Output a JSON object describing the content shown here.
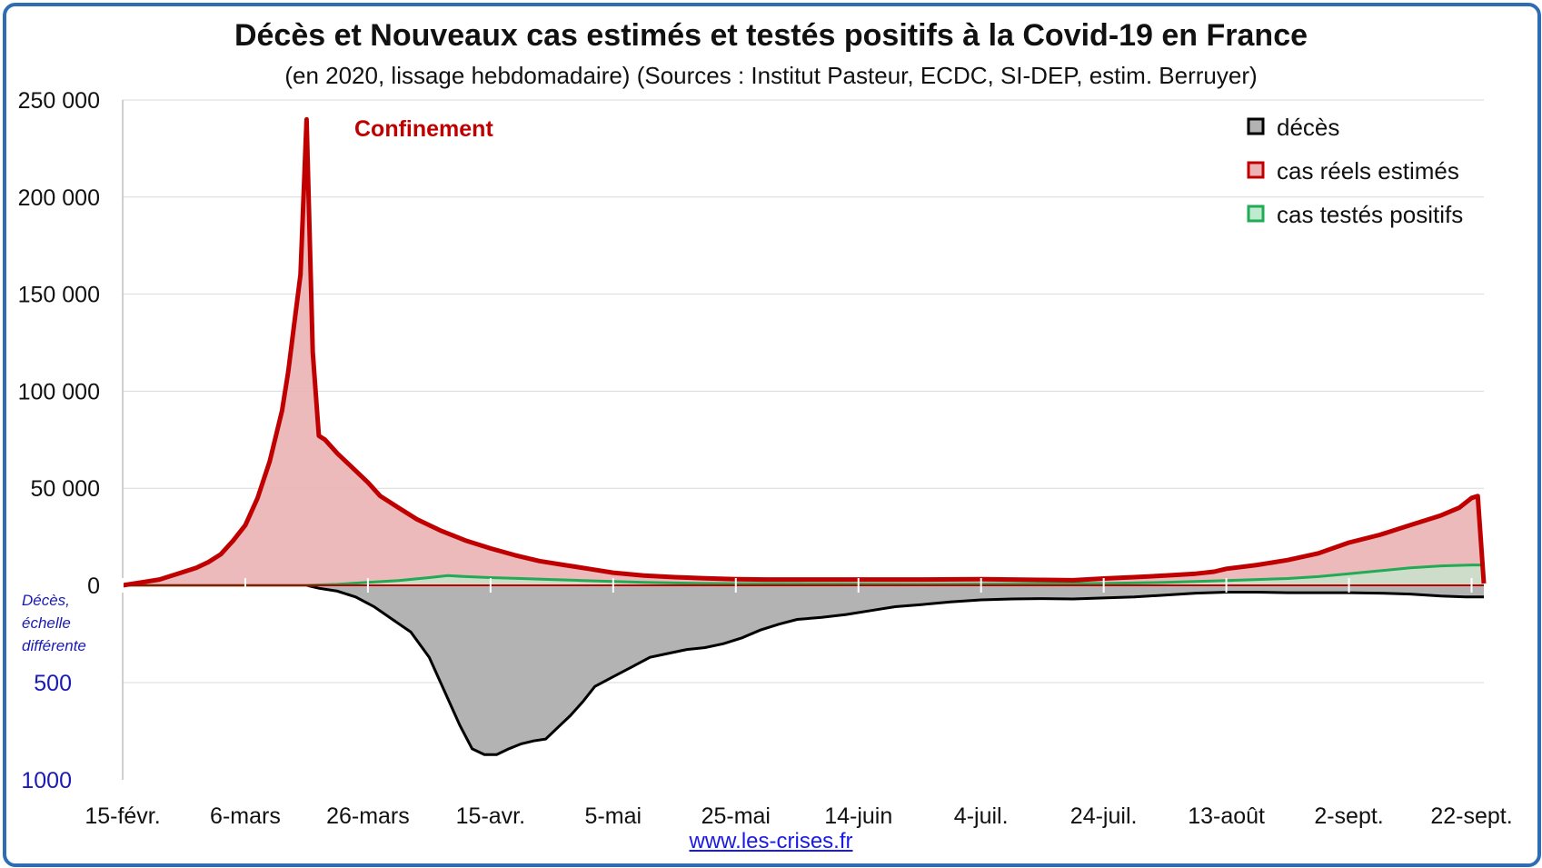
{
  "title": "Décès et Nouveaux cas estimés et testés positifs à la Covid-19 en France",
  "subtitle": "(en 2020, lissage hebdomadaire) (Sources : Institut Pasteur, ECDC, SI-DEP, estim. Berruyer)",
  "source_link": "www.les-crises.fr",
  "colors": {
    "frame": "#2e6db4",
    "cases": "#c00000",
    "cases_fill": "#ebb3b5",
    "tested": "#22aa55",
    "tested_fill": "#bfeccf",
    "deaths": "#000000",
    "deaths_fill": "#b3b3b3",
    "blue_text": "#1a1ab4"
  },
  "chart_data": {
    "type": "area",
    "annotation": "Confinement",
    "deaths_note": [
      "Décès,",
      "échelle",
      "différente"
    ],
    "ylim": [
      0,
      250000
    ],
    "y_ticks": [
      {
        "value": 250000,
        "label": "250 000"
      },
      {
        "value": 200000,
        "label": "200 000"
      },
      {
        "value": 150000,
        "label": "150 000"
      },
      {
        "value": 100000,
        "label": "100 000"
      },
      {
        "value": 50000,
        "label": "50 000"
      },
      {
        "value": 0,
        "label": "0"
      }
    ],
    "deaths_ticks": [
      {
        "value": 500,
        "label": "500"
      },
      {
        "value": 1000,
        "label": "1000"
      }
    ],
    "x_ticks": [
      {
        "day": 0,
        "label": "15-févr."
      },
      {
        "day": 20,
        "label": "6-mars"
      },
      {
        "day": 40,
        "label": "26-mars"
      },
      {
        "day": 60,
        "label": "15-avr."
      },
      {
        "day": 80,
        "label": "5-mai"
      },
      {
        "day": 100,
        "label": "25-mai"
      },
      {
        "day": 120,
        "label": "14-juin"
      },
      {
        "day": 140,
        "label": "4-juil."
      },
      {
        "day": 160,
        "label": "24-juil."
      },
      {
        "day": 180,
        "label": "13-août"
      },
      {
        "day": 200,
        "label": "2-sept."
      },
      {
        "day": 220,
        "label": "22-sept."
      }
    ],
    "legend_position": "top-right",
    "series": [
      {
        "name": "décès",
        "key": "deaths",
        "points": [
          [
            0,
            0
          ],
          [
            30,
            0
          ],
          [
            32,
            15
          ],
          [
            35,
            30
          ],
          [
            38,
            60
          ],
          [
            41,
            110
          ],
          [
            44,
            175
          ],
          [
            47,
            240
          ],
          [
            50,
            370
          ],
          [
            53,
            580
          ],
          [
            55,
            720
          ],
          [
            57,
            840
          ],
          [
            59,
            870
          ],
          [
            61,
            870
          ],
          [
            63,
            840
          ],
          [
            65,
            815
          ],
          [
            67,
            800
          ],
          [
            69,
            790
          ],
          [
            71,
            730
          ],
          [
            73,
            670
          ],
          [
            75,
            600
          ],
          [
            77,
            520
          ],
          [
            80,
            470
          ],
          [
            83,
            420
          ],
          [
            86,
            370
          ],
          [
            89,
            350
          ],
          [
            92,
            330
          ],
          [
            95,
            320
          ],
          [
            98,
            300
          ],
          [
            101,
            270
          ],
          [
            104,
            230
          ],
          [
            107,
            200
          ],
          [
            110,
            175
          ],
          [
            114,
            165
          ],
          [
            118,
            150
          ],
          [
            122,
            130
          ],
          [
            126,
            110
          ],
          [
            130,
            100
          ],
          [
            135,
            85
          ],
          [
            140,
            75
          ],
          [
            145,
            70
          ],
          [
            150,
            68
          ],
          [
            155,
            70
          ],
          [
            160,
            65
          ],
          [
            165,
            60
          ],
          [
            170,
            50
          ],
          [
            175,
            40
          ],
          [
            180,
            35
          ],
          [
            185,
            35
          ],
          [
            190,
            38
          ],
          [
            195,
            38
          ],
          [
            200,
            38
          ],
          [
            205,
            40
          ],
          [
            210,
            45
          ],
          [
            215,
            55
          ],
          [
            219,
            60
          ],
          [
            222,
            60
          ]
        ]
      },
      {
        "name": "cas réels estimés",
        "key": "cases",
        "points": [
          [
            0,
            0
          ],
          [
            3,
            1500
          ],
          [
            6,
            3000
          ],
          [
            9,
            6000
          ],
          [
            12,
            9000
          ],
          [
            14,
            12000
          ],
          [
            16,
            16000
          ],
          [
            18,
            23000
          ],
          [
            20,
            31000
          ],
          [
            22,
            45000
          ],
          [
            24,
            64000
          ],
          [
            26,
            90000
          ],
          [
            27,
            110000
          ],
          [
            28,
            135000
          ],
          [
            29,
            160000
          ],
          [
            30,
            240000
          ],
          [
            31,
            120000
          ],
          [
            32,
            77000
          ],
          [
            33,
            75000
          ],
          [
            35,
            68000
          ],
          [
            37,
            62000
          ],
          [
            40,
            53000
          ],
          [
            42,
            46000
          ],
          [
            45,
            40000
          ],
          [
            48,
            34000
          ],
          [
            52,
            28000
          ],
          [
            56,
            23000
          ],
          [
            60,
            19000
          ],
          [
            64,
            15500
          ],
          [
            68,
            12500
          ],
          [
            72,
            10500
          ],
          [
            76,
            8500
          ],
          [
            80,
            6500
          ],
          [
            85,
            5000
          ],
          [
            90,
            4200
          ],
          [
            95,
            3600
          ],
          [
            100,
            3200
          ],
          [
            105,
            3000
          ],
          [
            110,
            3000
          ],
          [
            120,
            3000
          ],
          [
            130,
            3000
          ],
          [
            140,
            3200
          ],
          [
            145,
            3000
          ],
          [
            150,
            2800
          ],
          [
            155,
            2600
          ],
          [
            160,
            3500
          ],
          [
            165,
            4200
          ],
          [
            170,
            5000
          ],
          [
            175,
            6000
          ],
          [
            178,
            7000
          ],
          [
            180,
            8500
          ],
          [
            185,
            10500
          ],
          [
            190,
            13000
          ],
          [
            195,
            16500
          ],
          [
            200,
            22000
          ],
          [
            205,
            26000
          ],
          [
            210,
            31000
          ],
          [
            215,
            36000
          ],
          [
            218,
            40000
          ],
          [
            220,
            45000
          ],
          [
            221,
            46000
          ],
          [
            222,
            1000
          ]
        ]
      },
      {
        "name": "cas testés positifs",
        "key": "tested",
        "points": [
          [
            0,
            0
          ],
          [
            30,
            0
          ],
          [
            35,
            500
          ],
          [
            40,
            1500
          ],
          [
            45,
            2500
          ],
          [
            50,
            4000
          ],
          [
            53,
            5000
          ],
          [
            56,
            4500
          ],
          [
            60,
            4000
          ],
          [
            65,
            3500
          ],
          [
            70,
            3000
          ],
          [
            75,
            2500
          ],
          [
            80,
            2000
          ],
          [
            85,
            1500
          ],
          [
            90,
            1200
          ],
          [
            95,
            1000
          ],
          [
            100,
            900
          ],
          [
            110,
            800
          ],
          [
            120,
            700
          ],
          [
            130,
            600
          ],
          [
            140,
            700
          ],
          [
            150,
            800
          ],
          [
            160,
            1000
          ],
          [
            170,
            1500
          ],
          [
            175,
            2000
          ],
          [
            180,
            2500
          ],
          [
            185,
            3000
          ],
          [
            190,
            3500
          ],
          [
            195,
            4500
          ],
          [
            200,
            6000
          ],
          [
            205,
            7500
          ],
          [
            210,
            9000
          ],
          [
            215,
            10000
          ],
          [
            220,
            10500
          ],
          [
            222,
            10500
          ]
        ]
      }
    ]
  }
}
